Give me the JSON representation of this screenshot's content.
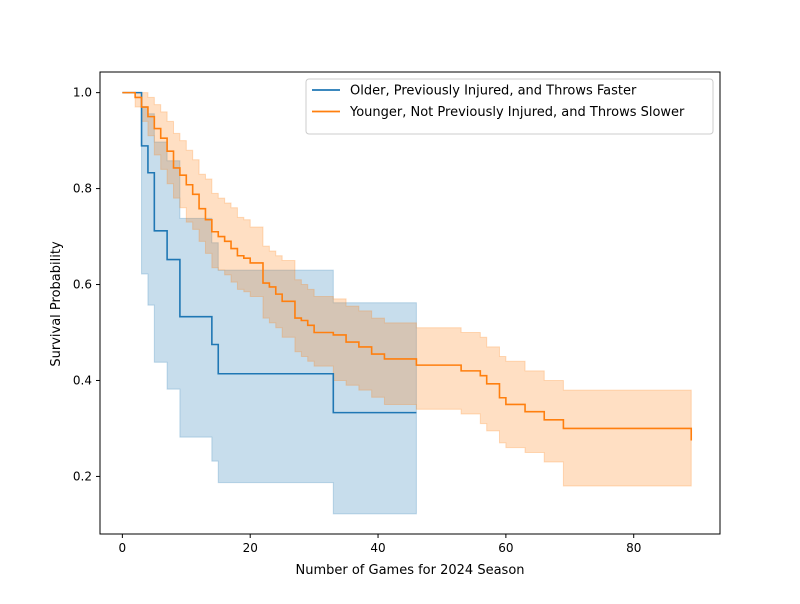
{
  "chart_data": {
    "type": "line",
    "xlabel": "Number of Games for 2024 Season",
    "ylabel": "Survival Probability",
    "xlim": [
      -3.5,
      93.5
    ],
    "ylim": [
      0.08,
      1.043
    ],
    "xticks": [
      0,
      20,
      40,
      60,
      80
    ],
    "yticks": [
      0.2,
      0.4,
      0.6,
      0.8,
      1.0
    ],
    "xtick_labels": [
      "0",
      "20",
      "40",
      "60",
      "80"
    ],
    "ytick_labels": [
      "0.2",
      "0.4",
      "0.6",
      "0.8",
      "1.0"
    ],
    "step": "post",
    "legend_position": "top-right",
    "grid": false,
    "series": [
      {
        "name": "Older, Previously Injured, and Throws Faster",
        "color": "#1f77b4",
        "x": [
          0,
          3,
          4,
          5,
          7,
          9,
          14,
          15,
          33,
          46
        ],
        "y": [
          1.0,
          0.889,
          0.833,
          0.712,
          0.652,
          0.533,
          0.475,
          0.414,
          0.333,
          0.333
        ],
        "ci_lower": [
          1.0,
          0.622,
          0.557,
          0.438,
          0.382,
          0.282,
          0.232,
          0.187,
          0.122,
          0.122
        ],
        "ci_upper": [
          1.0,
          0.971,
          0.956,
          0.897,
          0.858,
          0.738,
          0.687,
          0.63,
          0.562,
          0.562
        ]
      },
      {
        "name": "Younger, Not Previously Injured, and Throws Slower",
        "color": "#ff7f0e",
        "x": [
          0,
          2,
          3,
          4,
          5,
          6,
          7,
          8,
          9,
          10,
          11,
          12,
          13,
          14,
          15,
          16,
          17,
          18,
          19,
          20,
          22,
          23,
          24,
          25,
          27,
          28,
          29,
          30,
          33,
          35,
          37,
          39,
          41,
          46,
          53,
          56,
          57,
          59,
          60,
          63,
          66,
          69,
          89
        ],
        "y": [
          1.0,
          0.99,
          0.97,
          0.95,
          0.925,
          0.905,
          0.878,
          0.843,
          0.828,
          0.808,
          0.788,
          0.758,
          0.735,
          0.71,
          0.7,
          0.69,
          0.675,
          0.66,
          0.655,
          0.645,
          0.603,
          0.595,
          0.58,
          0.565,
          0.53,
          0.525,
          0.515,
          0.5,
          0.495,
          0.48,
          0.47,
          0.455,
          0.445,
          0.432,
          0.42,
          0.41,
          0.393,
          0.364,
          0.35,
          0.335,
          0.318,
          0.3,
          0.275
        ],
        "ci_lower": [
          1.0,
          0.97,
          0.94,
          0.91,
          0.87,
          0.84,
          0.81,
          0.78,
          0.76,
          0.73,
          0.715,
          0.69,
          0.665,
          0.635,
          0.63,
          0.62,
          0.605,
          0.59,
          0.585,
          0.575,
          0.53,
          0.52,
          0.51,
          0.49,
          0.46,
          0.45,
          0.44,
          0.43,
          0.4,
          0.39,
          0.38,
          0.365,
          0.35,
          0.34,
          0.33,
          0.31,
          0.295,
          0.27,
          0.26,
          0.25,
          0.23,
          0.18,
          0.18
        ],
        "ci_upper": [
          1.0,
          1.0,
          1.0,
          0.99,
          0.975,
          0.96,
          0.94,
          0.915,
          0.9,
          0.88,
          0.86,
          0.83,
          0.82,
          0.79,
          0.78,
          0.77,
          0.76,
          0.74,
          0.735,
          0.72,
          0.68,
          0.67,
          0.66,
          0.65,
          0.61,
          0.6,
          0.59,
          0.575,
          0.57,
          0.555,
          0.545,
          0.53,
          0.52,
          0.51,
          0.5,
          0.49,
          0.47,
          0.45,
          0.44,
          0.42,
          0.4,
          0.38,
          0.37
        ]
      }
    ]
  }
}
